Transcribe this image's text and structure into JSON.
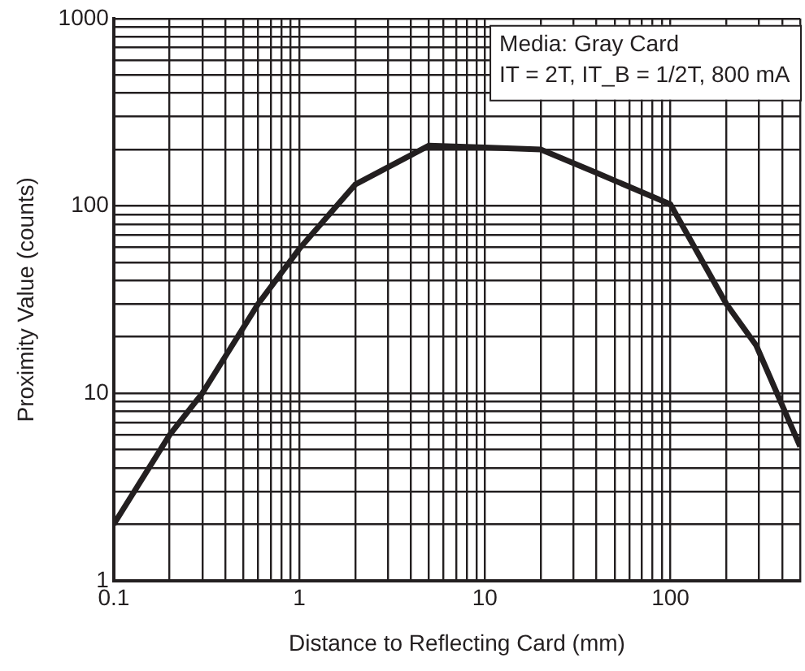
{
  "chart_data": {
    "type": "line",
    "xlabel": "Distance to Reflecting Card (mm)",
    "ylabel": "Proximity Value (counts)",
    "annotations": [
      "Media: Gray Card",
      "IT = 2T, IT_B = 1/2T, 800 mA"
    ],
    "x": [
      0.1,
      0.2,
      0.3,
      0.6,
      1,
      2,
      5,
      10,
      20,
      40,
      100,
      200,
      290,
      500
    ],
    "series": [
      {
        "color": "#231f20",
        "values": [
          2,
          6,
          10,
          30,
          59,
          130,
          210,
          205,
          200,
          150,
          102,
          30,
          18,
          5.2
        ]
      }
    ],
    "log": "xy",
    "grid": true,
    "legend": false,
    "marker": "none",
    "line_style": "solid",
    "xlim": [
      0.1,
      500
    ],
    "ylim": [
      1,
      1000
    ],
    "xticks": [
      0.1,
      {
        "value": 0.2,
        "label": null
      },
      {
        "value": 0.3,
        "label": null
      },
      {
        "value": 0.4,
        "label": null
      },
      {
        "value": 0.5,
        "label": null
      },
      {
        "value": 0.6,
        "label": null
      },
      {
        "value": 0.7,
        "label": null
      },
      {
        "value": 0.8,
        "label": null
      },
      {
        "value": 0.9,
        "label": null
      },
      1,
      {
        "value": 2,
        "label": null
      },
      {
        "value": 3,
        "label": null
      },
      {
        "value": 4,
        "label": null
      },
      {
        "value": 5,
        "label": null
      },
      {
        "value": 6,
        "label": null
      },
      {
        "value": 7,
        "label": null
      },
      {
        "value": 8,
        "label": null
      },
      {
        "value": 9,
        "label": null
      },
      10,
      {
        "value": 20,
        "label": null
      },
      {
        "value": 30,
        "label": null
      },
      {
        "value": 40,
        "label": null
      },
      {
        "value": 50,
        "label": null
      },
      {
        "value": 60,
        "label": null
      },
      {
        "value": 70,
        "label": null
      },
      {
        "value": 80,
        "label": null
      },
      {
        "value": 90,
        "label": null
      },
      100,
      {
        "value": 200,
        "label": null
      },
      {
        "value": 300,
        "label": null
      },
      {
        "value": 400,
        "label": null
      },
      {
        "value": 500,
        "label": null
      }
    ],
    "yticks": [
      1,
      {
        "value": 2,
        "label": null
      },
      {
        "value": 3,
        "label": null
      },
      {
        "value": 4,
        "label": null
      },
      {
        "value": 5,
        "label": null
      },
      {
        "value": 6,
        "label": null
      },
      {
        "value": 7,
        "label": null
      },
      {
        "value": 8,
        "label": null
      },
      {
        "value": 9,
        "label": null
      },
      10,
      {
        "value": 20,
        "label": null
      },
      {
        "value": 30,
        "label": null
      },
      {
        "value": 40,
        "label": null
      },
      {
        "value": 50,
        "label": null
      },
      {
        "value": 60,
        "label": null
      },
      {
        "value": 70,
        "label": null
      },
      {
        "value": 80,
        "label": null
      },
      {
        "value": 90,
        "label": null
      },
      100,
      {
        "value": 200,
        "label": null
      },
      {
        "value": 300,
        "label": null
      },
      {
        "value": 400,
        "label": null
      },
      {
        "value": 500,
        "label": null
      },
      {
        "value": 600,
        "label": null
      },
      {
        "value": 700,
        "label": null
      },
      {
        "value": 800,
        "label": null
      },
      {
        "value": 900,
        "label": null
      },
      1000
    ]
  }
}
